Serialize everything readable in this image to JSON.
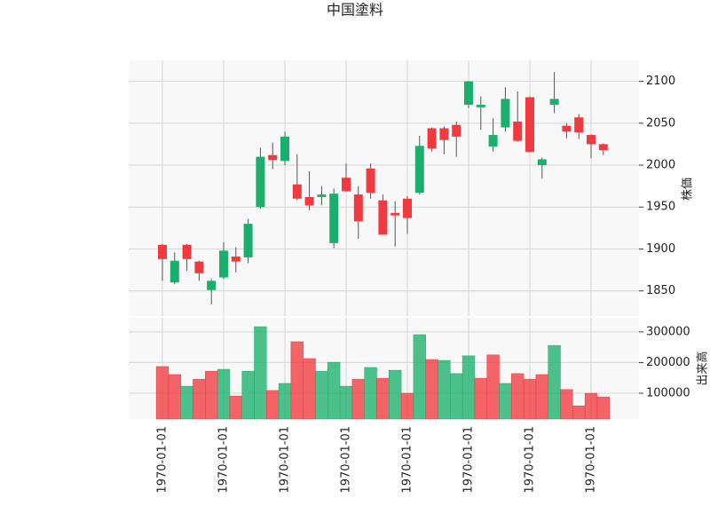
{
  "chart_data": {
    "type": "candlestick",
    "title": "中国塗料",
    "categories": [
      "1970-01-01",
      null,
      null,
      null,
      null,
      "1970-01-01",
      null,
      null,
      null,
      null,
      "1970-01-01",
      null,
      null,
      null,
      null,
      "1970-01-01",
      null,
      null,
      null,
      null,
      "1970-01-01",
      null,
      null,
      null,
      null,
      "1970-01-01",
      null,
      null,
      null,
      null,
      "1970-01-01",
      null,
      null,
      null,
      null,
      "1970-01-01",
      null
    ],
    "open": [
      1905,
      1860,
      1905,
      1885,
      1851,
      1866,
      1891,
      1890,
      1950,
      2012,
      2005,
      1977,
      1962,
      1962,
      1907,
      1985,
      1965,
      1996,
      1958,
      1943,
      1960,
      1967,
      2044,
      2044,
      2048,
      2072,
      2069,
      2022,
      2045,
      2052,
      2081,
      2000,
      2072,
      2047,
      2057,
      2036,
      2025
    ],
    "high": [
      1906,
      1896,
      1906,
      1886,
      1864,
      1908,
      1902,
      1936,
      2021,
      2027,
      2040,
      2013,
      1993,
      1975,
      1972,
      2002,
      1975,
      2002,
      1965,
      1957,
      1963,
      2035,
      2045,
      2046,
      2052,
      2100,
      2082,
      2056,
      2093,
      2088,
      2082,
      2009,
      2111,
      2050,
      2061,
      2037,
      2026
    ],
    "low": [
      1862,
      1858,
      1874,
      1862,
      1834,
      1864,
      1872,
      1883,
      1948,
      1995,
      2000,
      1958,
      1946,
      1952,
      1901,
      1968,
      1912,
      1960,
      1917,
      1903,
      1918,
      1965,
      2016,
      2013,
      2010,
      2068,
      2042,
      2016,
      2040,
      2028,
      2015,
      1984,
      2062,
      2032,
      2031,
      2008,
      2012
    ],
    "close": [
      1888,
      1886,
      1888,
      1871,
      1862,
      1898,
      1885,
      1930,
      2010,
      2006,
      2034,
      1960,
      1952,
      1965,
      1966,
      1969,
      1933,
      1967,
      1917,
      1940,
      1937,
      2023,
      2020,
      2030,
      2034,
      2100,
      2072,
      2036,
      2079,
      2029,
      2016,
      2007,
      2079,
      2040,
      2039,
      2025,
      2018
    ],
    "volume": [
      187000,
      161000,
      123000,
      146000,
      172000,
      178000,
      91000,
      172000,
      317000,
      109000,
      132000,
      268000,
      213000,
      172000,
      201000,
      123000,
      146000,
      184000,
      149000,
      175000,
      100000,
      291000,
      210000,
      207000,
      164000,
      222000,
      149000,
      225000,
      132000,
      164000,
      146000,
      161000,
      256000,
      112000,
      59000,
      100000,
      88000
    ],
    "up_color": "#1aaf6c",
    "down_color": "#f03a3f",
    "ylabel": "株価",
    "ylim": [
      1820,
      2125
    ],
    "yticks": [
      1850,
      1900,
      1950,
      2000,
      2050,
      2100
    ],
    "volume_label": "出来高",
    "volume_lim": [
      16000,
      346000
    ],
    "volume_ticks": [
      {
        "value": 100000,
        "label": "100000"
      },
      {
        "value": 200000,
        "label": "200000"
      },
      {
        "value": 300000,
        "label": "300000"
      }
    ],
    "grid": true
  }
}
